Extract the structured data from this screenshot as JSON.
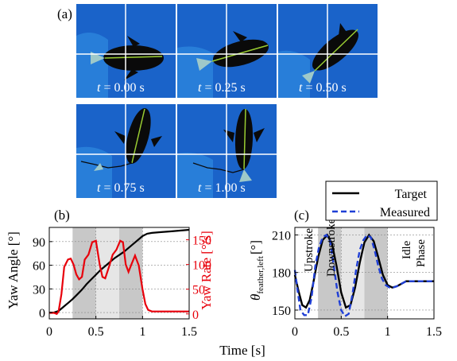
{
  "panel_labels": {
    "a": "(a)",
    "b": "(b)",
    "c": "(c)"
  },
  "photos": {
    "t_prefix": "t",
    "times": [
      "= 0.00 s",
      "= 0.25 s",
      "= 0.50 s",
      "= 0.75 s",
      "= 1.00 s"
    ],
    "background_color": "#1a63c9",
    "body_color": "#0a0a0a",
    "stripe_color": "#9acd32",
    "grid_color": "#ffffff"
  },
  "shared_xlabel": "Time [s]",
  "chart_data": [
    {
      "id": "b",
      "type": "line",
      "xlim": [
        0,
        1.5
      ],
      "xticks": [
        "0",
        "0.5",
        "1",
        "1.5"
      ],
      "xtick_values": [
        0,
        0.5,
        1,
        1.5
      ],
      "left_axis": {
        "label": "Yaw Angle [°]",
        "ylim": [
          -8,
          108
        ],
        "ticks": [
          0,
          30,
          60,
          90
        ],
        "color": "#000000"
      },
      "right_axis": {
        "label": "Yaw Rate [°/s]",
        "ylim": [
          -10,
          175
        ],
        "ticks": [
          0,
          50,
          100,
          150
        ],
        "color": "#e8000b"
      },
      "shaded_bands": [
        {
          "x0": 0.25,
          "x1": 0.5,
          "color": "#c8c8c8"
        },
        {
          "x0": 0.5,
          "x1": 0.75,
          "color": "#e6e6e6"
        },
        {
          "x0": 0.75,
          "x1": 1.0,
          "color": "#c8c8c8"
        }
      ],
      "series": [
        {
          "axis": "left",
          "color": "#000000",
          "x": [
            0,
            0.05,
            0.1,
            0.15,
            0.2,
            0.25,
            0.3,
            0.35,
            0.4,
            0.45,
            0.5,
            0.55,
            0.6,
            0.65,
            0.7,
            0.75,
            0.8,
            0.85,
            0.9,
            0.95,
            1.0,
            1.05,
            1.1,
            1.2,
            1.3,
            1.4,
            1.5
          ],
          "y": [
            0,
            0,
            2,
            7,
            12,
            17,
            23,
            29,
            36,
            42,
            48,
            54,
            59,
            64,
            69,
            73,
            77,
            82,
            87,
            92,
            97,
            100,
            101,
            102,
            103,
            104,
            105
          ]
        },
        {
          "axis": "right",
          "color": "#e8000b",
          "x": [
            0,
            0.05,
            0.08,
            0.1,
            0.13,
            0.16,
            0.2,
            0.23,
            0.26,
            0.29,
            0.32,
            0.35,
            0.38,
            0.42,
            0.46,
            0.5,
            0.54,
            0.57,
            0.6,
            0.64,
            0.68,
            0.72,
            0.76,
            0.79,
            0.82,
            0.85,
            0.88,
            0.92,
            0.96,
            1.0,
            1.03,
            1.06,
            1.1,
            1.2,
            1.3,
            1.4,
            1.5
          ],
          "y": [
            2,
            2,
            0,
            5,
            40,
            95,
            110,
            112,
            100,
            80,
            70,
            75,
            110,
            120,
            145,
            148,
            100,
            75,
            72,
            95,
            120,
            130,
            148,
            145,
            100,
            85,
            100,
            118,
            98,
            50,
            20,
            8,
            5,
            5,
            5,
            5,
            5
          ]
        }
      ]
    },
    {
      "id": "c",
      "type": "line",
      "xlim": [
        0,
        1.5
      ],
      "xticks": [
        "0",
        "0.5",
        "1",
        "1.5"
      ],
      "xtick_values": [
        0,
        0.5,
        1,
        1.5
      ],
      "ylabel_main": "θ",
      "ylabel_sub": "feather,left",
      "ylabel_unit": "[°]",
      "ylim": [
        143,
        216
      ],
      "yticks": [
        150,
        180,
        210
      ],
      "shaded_bands": [
        {
          "x0": 0.0,
          "x1": 0.25,
          "color": "#ffffff"
        },
        {
          "x0": 0.25,
          "x1": 0.5,
          "color": "#c8c8c8"
        },
        {
          "x0": 0.5,
          "x1": 0.75,
          "color": "#e6e6e6"
        },
        {
          "x0": 0.75,
          "x1": 1.0,
          "color": "#c8c8c8"
        }
      ],
      "phase_labels": [
        "Upstroke",
        "Downstroke",
        "Idle",
        "Phase"
      ],
      "legend": {
        "entries": [
          "Target",
          "Measured"
        ],
        "position": "top-right"
      },
      "series": [
        {
          "name": "Target",
          "color": "#000000",
          "dash": "solid",
          "x": [
            0,
            0.04,
            0.08,
            0.12,
            0.16,
            0.2,
            0.25,
            0.3,
            0.35,
            0.4,
            0.45,
            0.5,
            0.55,
            0.6,
            0.65,
            0.7,
            0.75,
            0.8,
            0.85,
            0.9,
            0.95,
            1.0,
            1.05,
            1.1,
            1.2,
            1.3,
            1.4,
            1.5
          ],
          "y": [
            178,
            165,
            154,
            152,
            158,
            172,
            192,
            206,
            210,
            203,
            185,
            164,
            152,
            154,
            168,
            188,
            204,
            210,
            205,
            192,
            178,
            170,
            168,
            169,
            173,
            173,
            173,
            173
          ]
        },
        {
          "name": "Measured",
          "color": "#1f3fd6",
          "dash": "dashed",
          "x": [
            0,
            0.03,
            0.06,
            0.1,
            0.14,
            0.18,
            0.22,
            0.26,
            0.3,
            0.34,
            0.38,
            0.42,
            0.46,
            0.5,
            0.54,
            0.58,
            0.62,
            0.66,
            0.7,
            0.74,
            0.78,
            0.82,
            0.86,
            0.9,
            0.94,
            0.98,
            1.02,
            1.06,
            1.1,
            1.2,
            1.3,
            1.4,
            1.5
          ],
          "y": [
            182,
            165,
            150,
            146,
            146,
            160,
            185,
            200,
            208,
            210,
            205,
            185,
            164,
            150,
            145,
            147,
            162,
            182,
            198,
            206,
            210,
            208,
            198,
            185,
            175,
            170,
            168,
            168,
            169,
            173,
            173,
            173,
            173
          ]
        }
      ]
    }
  ]
}
